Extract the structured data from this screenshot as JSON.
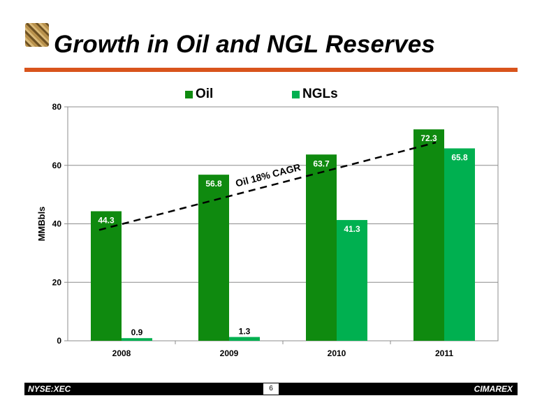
{
  "header": {
    "title": "Growth in Oil and NGL Reserves"
  },
  "footer": {
    "ticker": "NYSE:XEC",
    "page_number": "6",
    "brand": "CIMAREX"
  },
  "colors": {
    "accent_orange": "#d9541c",
    "oil": "#0f8a0f",
    "ngl": "#00b050",
    "footer": "#000000"
  },
  "chart_data": {
    "type": "bar",
    "categories": [
      "2008",
      "2009",
      "2010",
      "2011"
    ],
    "series": [
      {
        "name": "Oil",
        "values": [
          44.3,
          56.8,
          63.7,
          72.3
        ],
        "labels": [
          "44.3",
          "56.8",
          "63.7",
          "72.3"
        ],
        "color": "#0f8a0f"
      },
      {
        "name": "NGLs",
        "values": [
          0.9,
          1.3,
          41.3,
          65.8
        ],
        "labels": [
          "0.9",
          "1.3",
          "41.3",
          "65.8"
        ],
        "color": "#00b050"
      }
    ],
    "ylabel": "MMBbls",
    "xlabel": "",
    "ylim": [
      0,
      80
    ],
    "yticks": [
      0,
      20,
      40,
      60,
      80
    ],
    "grid": true,
    "legend": "top",
    "trend": {
      "label": "Oil 18% CAGR",
      "start": {
        "x": "2008",
        "y": 37.9
      },
      "end": {
        "x": "2011",
        "y": 67.8
      }
    }
  }
}
